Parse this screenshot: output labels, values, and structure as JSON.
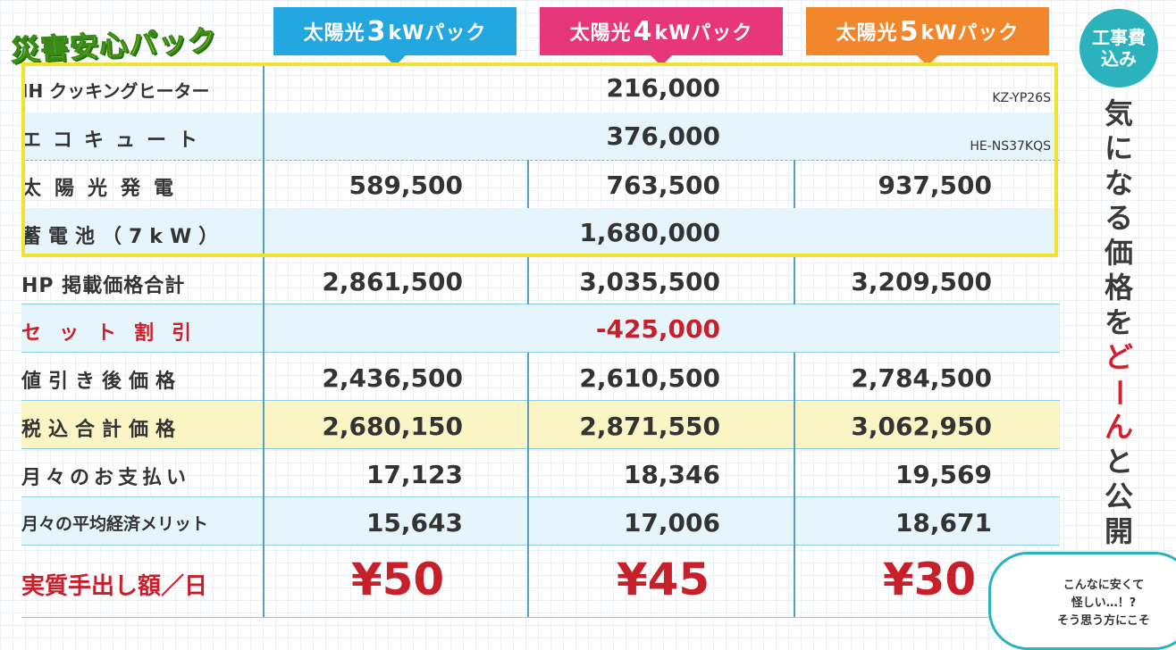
{
  "title": "災害安心パック",
  "tabs": [
    {
      "prefix": "太陽光",
      "num": "3",
      "suffix": "kWパック",
      "color": "#23a7e0"
    },
    {
      "prefix": "太陽光",
      "num": "4",
      "suffix": "kWパック",
      "color": "#e8367a"
    },
    {
      "prefix": "太陽光",
      "num": "5",
      "suffix": "kWパック",
      "color": "#f2862a"
    }
  ],
  "rows": {
    "ih": {
      "label": "IH クッキングヒーター",
      "value": "216,000",
      "model": "KZ-YP26S"
    },
    "eco": {
      "label": "エコキュート",
      "value": "376,000",
      "model": "HE-NS37KQS"
    },
    "solar": {
      "label": "太陽光発電",
      "values": [
        "589,500",
        "763,500",
        "937,500"
      ]
    },
    "battery": {
      "label": "蓄電池（7kW）",
      "value": "1,680,000"
    },
    "hp_total": {
      "label": "HP 掲載価格合計",
      "values": [
        "2,861,500",
        "3,035,500",
        "3,209,500"
      ]
    },
    "set_discount": {
      "label": "セット割引",
      "value": "-425,000"
    },
    "after_discount": {
      "label": "値引き後価格",
      "values": [
        "2,436,500",
        "2,610,500",
        "2,784,500"
      ]
    },
    "tax_total": {
      "label": "税込合計価格",
      "values": [
        "2,680,150",
        "2,871,550",
        "3,062,950"
      ]
    },
    "monthly": {
      "label": "月々のお支払い",
      "values": [
        "17,123",
        "18,346",
        "19,569"
      ]
    },
    "merit": {
      "label": "月々の平均経済メリット",
      "values": [
        "15,643",
        "17,006",
        "18,671"
      ]
    },
    "daily": {
      "label": "実質手出し額／日",
      "values": [
        "¥50",
        "¥45",
        "¥30"
      ]
    }
  },
  "badge": {
    "line1": "工事費",
    "line2": "込み"
  },
  "vertical": {
    "part1": "気になる価格を",
    "emphasis": "どーん",
    "part2": "と公開！"
  },
  "bubble": {
    "line1": "こんなに安くて",
    "line2": "怪しい…！?",
    "line3": "そう思う方にこそ"
  }
}
